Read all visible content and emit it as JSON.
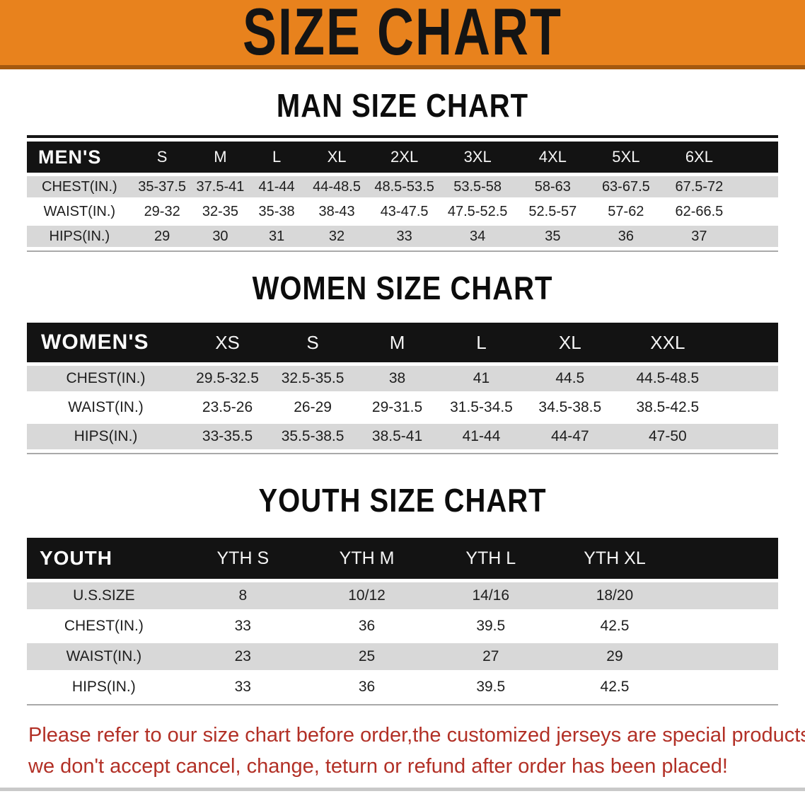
{
  "banner": {
    "title": "SIZE CHART",
    "bg_color": "#e8821d",
    "edge_color": "#a4590f"
  },
  "colors": {
    "header_band": "#131313",
    "row_gray": "#d8d8d8",
    "row_white": "#ffffff",
    "note_red": "#b23026"
  },
  "sections": [
    {
      "heading": "MAN SIZE CHART",
      "table": {
        "corner_label": "MEN'S",
        "columns": [
          "S",
          "M",
          "L",
          "XL",
          "2XL",
          "3XL",
          "4XL",
          "5XL",
          "6XL"
        ],
        "rows": [
          {
            "label": "CHEST(IN.)",
            "values": [
              "35-37.5",
              "37.5-41",
              "41-44",
              "44-48.5",
              "48.5-53.5",
              "53.5-58",
              "58-63",
              "63-67.5",
              "67.5-72"
            ]
          },
          {
            "label": "WAIST(IN.)",
            "values": [
              "29-32",
              "32-35",
              "35-38",
              "38-43",
              "43-47.5",
              "47.5-52.5",
              "52.5-57",
              "57-62",
              "62-66.5"
            ]
          },
          {
            "label": "HIPS(IN.)",
            "values": [
              "29",
              "30",
              "31",
              "32",
              "33",
              "34",
              "35",
              "36",
              "37"
            ]
          }
        ]
      }
    },
    {
      "heading": "WOMEN SIZE CHART",
      "table": {
        "corner_label": "WOMEN'S",
        "columns": [
          "XS",
          "S",
          "M",
          "L",
          "XL",
          "XXL"
        ],
        "rows": [
          {
            "label": "CHEST(IN.)",
            "values": [
              "29.5-32.5",
              "32.5-35.5",
              "38",
              "41",
              "44.5",
              "44.5-48.5"
            ]
          },
          {
            "label": "WAIST(IN.)",
            "values": [
              "23.5-26",
              "26-29",
              "29-31.5",
              "31.5-34.5",
              "34.5-38.5",
              "38.5-42.5"
            ]
          },
          {
            "label": "HIPS(IN.)",
            "values": [
              "33-35.5",
              "35.5-38.5",
              "38.5-41",
              "41-44",
              "44-47",
              "47-50"
            ]
          }
        ]
      }
    },
    {
      "heading": "YOUTH SIZE CHART",
      "table": {
        "corner_label": "YOUTH",
        "columns": [
          "YTH S",
          "YTH M",
          "YTH L",
          "YTH XL"
        ],
        "rows": [
          {
            "label": "U.S.SIZE",
            "values": [
              "8",
              "10/12",
              "14/16",
              "18/20"
            ]
          },
          {
            "label": "CHEST(IN.)",
            "values": [
              "33",
              "36",
              "39.5",
              "42.5"
            ]
          },
          {
            "label": "WAIST(IN.)",
            "values": [
              "23",
              "25",
              "27",
              "29"
            ]
          },
          {
            "label": "HIPS(IN.)",
            "values": [
              "33",
              "36",
              "39.5",
              "42.5"
            ]
          }
        ]
      }
    }
  ],
  "note": {
    "line1": "Please refer to our size chart before order,the customized jerseys are special products,",
    "line2": "we don't accept cancel, change, teturn or refund after order has been placed!"
  }
}
